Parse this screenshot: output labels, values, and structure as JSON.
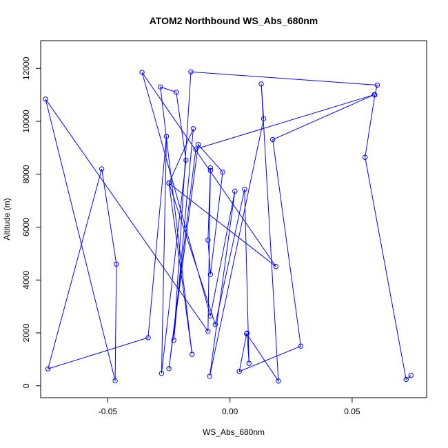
{
  "chart_data": {
    "type": "line",
    "title": "ATOM2 Northbound WS_Abs_680nm",
    "xlabel": "WS_Abs_680nm",
    "ylabel": "Altitude (m)",
    "xlim": [
      -0.0775,
      0.0805
    ],
    "ylim": [
      -450,
      13050
    ],
    "x_ticks": [
      -0.05,
      0.0,
      0.05
    ],
    "x_tick_labels": [
      "-0.05",
      "0.00",
      "0.05"
    ],
    "y_ticks": [
      0,
      2000,
      4000,
      6000,
      8000,
      10000,
      12000
    ],
    "y_tick_labels": [
      "0",
      "2000",
      "4000",
      "6000",
      "8000",
      "10000",
      "12000"
    ],
    "grid": false,
    "series": [
      {
        "color": "#0000ff",
        "marker": "open-circle",
        "points": [
          {
            "x": 0.0741,
            "y": 390
          },
          {
            "x": 0.0721,
            "y": 240
          },
          {
            "x": 0.0553,
            "y": 8640
          },
          {
            "x": 0.0593,
            "y": 11000
          },
          {
            "x": 0.0603,
            "y": 11370
          },
          {
            "x": -0.016,
            "y": 11870
          },
          {
            "x": -0.023,
            "y": 1720
          },
          {
            "x": -0.015,
            "y": 9720
          },
          {
            "x": -0.025,
            "y": 7660
          },
          {
            "x": 0.0188,
            "y": 4510
          },
          {
            "x": -0.036,
            "y": 11850
          },
          {
            "x": -0.008,
            "y": 2640
          },
          {
            "x": 0.002,
            "y": 7360
          },
          {
            "x": -0.0083,
            "y": 360
          },
          {
            "x": 0.0138,
            "y": 10100
          },
          {
            "x": 0.0128,
            "y": 11410
          },
          {
            "x": 0.0198,
            "y": 180
          },
          {
            "x": 0.0068,
            "y": 1970
          },
          {
            "x": 0.0038,
            "y": 540
          },
          {
            "x": 0.029,
            "y": 1500
          },
          {
            "x": 0.0175,
            "y": 9310
          },
          {
            "x": 0.0591,
            "y": 11010
          },
          {
            "x": -0.014,
            "y": 8950
          },
          {
            "x": -0.025,
            "y": 650
          },
          {
            "x": -0.013,
            "y": 9120
          },
          {
            "x": -0.003,
            "y": 8080
          },
          {
            "x": -0.008,
            "y": 4210
          },
          {
            "x": -0.009,
            "y": 5510
          },
          {
            "x": -0.008,
            "y": 8140
          },
          {
            "x": -0.008,
            "y": 8240
          },
          {
            "x": -0.009,
            "y": 2060
          },
          {
            "x": -0.0755,
            "y": 10840
          },
          {
            "x": -0.047,
            "y": 190
          },
          {
            "x": -0.0465,
            "y": 4600
          },
          {
            "x": -0.0525,
            "y": 8200
          },
          {
            "x": -0.0745,
            "y": 640
          },
          {
            "x": -0.0335,
            "y": 1820
          },
          {
            "x": -0.026,
            "y": 9430
          },
          {
            "x": -0.028,
            "y": 470
          },
          {
            "x": -0.018,
            "y": 8530
          },
          {
            "x": -0.022,
            "y": 11100
          },
          {
            "x": -0.0285,
            "y": 11300
          },
          {
            "x": -0.0155,
            "y": 1190
          },
          {
            "x": -0.025,
            "y": 7670
          },
          {
            "x": -0.006,
            "y": 2320
          },
          {
            "x": 0.006,
            "y": 7430
          },
          {
            "x": 0.0078,
            "y": 850
          },
          {
            "x": 0.007,
            "y": 1990
          }
        ]
      }
    ]
  }
}
